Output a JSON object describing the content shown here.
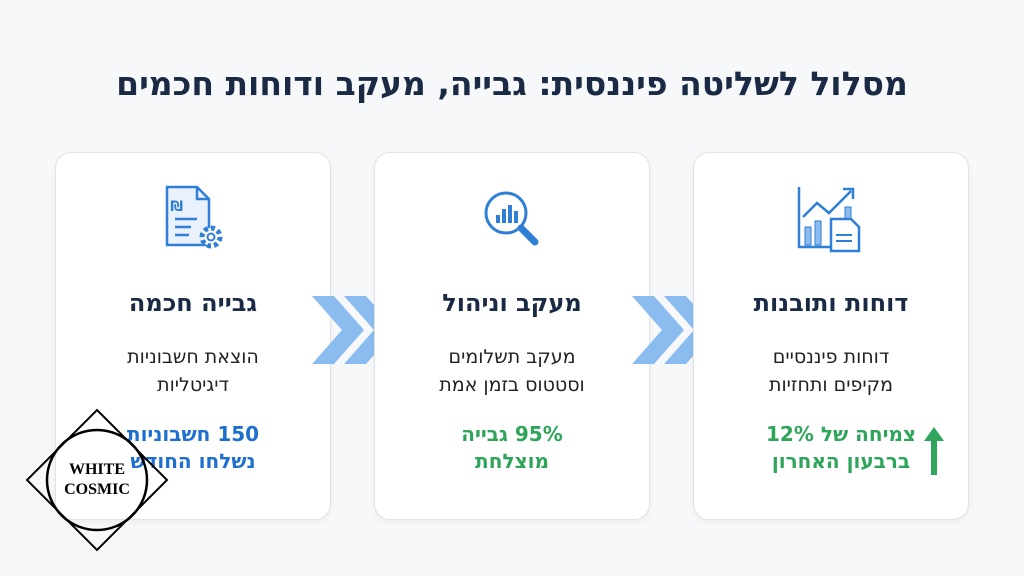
{
  "title": "מסלול לשליטה פיננסית: גבייה, מעקב ודוחות חכמים",
  "colors": {
    "blue": "#1f6fd1",
    "green": "#2ea55a",
    "chevron": "#8bbcf0",
    "icon": "#2f7fd6",
    "navy": "#1b2a44"
  },
  "cards": [
    {
      "icon": "invoice-gear-icon",
      "heading": "גבייה חכמה",
      "desc1": "הוצאת חשבוניות",
      "desc2": "דיגיטליות",
      "stat1": "150 חשבוניות",
      "stat2": "נשלחו החודש"
    },
    {
      "icon": "magnifier-chart-icon",
      "heading": "מעקב וניהול",
      "desc1": "מעקב תשלומים",
      "desc2": "וסטטוס בזמן אמת",
      "stat1": "95% גבייה",
      "stat2": "מוצלחת"
    },
    {
      "icon": "growth-chart-report-icon",
      "heading": "דוחות ותובנות",
      "desc1": "דוחות פיננסיים",
      "desc2": "מקיפים ותחזיות",
      "stat1": "צמיחה של 12%",
      "stat2": "ברבעון האחרון"
    }
  ],
  "watermark": {
    "line1": "WHITE",
    "line2": "COSMIC"
  }
}
